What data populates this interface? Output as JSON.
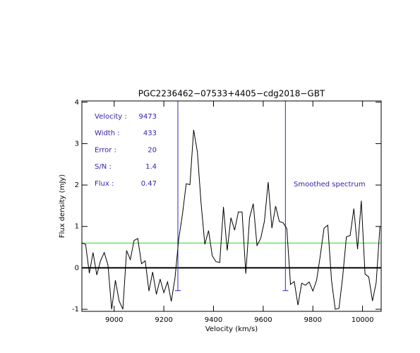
{
  "chart_data": {
    "type": "line",
    "title": "PGC2236462−07533+4405−cdg2018−GBT",
    "x_label": "Velocity (km/s)",
    "y_label": "Flux density (mJy)",
    "xlim": [
      8870,
      10075
    ],
    "ylim": [
      -1.05,
      4.03
    ],
    "xticks": [
      9000,
      9200,
      9400,
      9600,
      9800,
      10000
    ],
    "yticks": [
      -1,
      0,
      1,
      2,
      3,
      4
    ],
    "x": [
      8870,
      8885,
      8900,
      8915,
      8930,
      8945,
      8960,
      8975,
      8990,
      9005,
      9020,
      9035,
      9050,
      9065,
      9080,
      9095,
      9110,
      9125,
      9140,
      9155,
      9170,
      9185,
      9200,
      9215,
      9230,
      9245,
      9260,
      9275,
      9290,
      9305,
      9320,
      9335,
      9350,
      9365,
      9380,
      9395,
      9410,
      9425,
      9440,
      9455,
      9470,
      9485,
      9500,
      9515,
      9530,
      9545,
      9560,
      9575,
      9590,
      9605,
      9620,
      9635,
      9650,
      9665,
      9680,
      9695,
      9710,
      9725,
      9740,
      9755,
      9770,
      9785,
      9800,
      9815,
      9830,
      9845,
      9860,
      9875,
      9890,
      9905,
      9920,
      9935,
      9950,
      9965,
      9980,
      9995,
      10010,
      10025,
      10040,
      10055,
      10070
    ],
    "series": [
      {
        "name": "Smoothed spectrum",
        "color": "#000000",
        "values": [
          0.6,
          0.57,
          -0.13,
          0.37,
          -0.17,
          0.17,
          0.37,
          0.07,
          -1.0,
          -0.3,
          -0.8,
          -1.0,
          0.42,
          0.2,
          0.66,
          0.71,
          0.1,
          0.17,
          -0.56,
          -0.1,
          -0.64,
          -0.27,
          -0.6,
          -0.34,
          -0.81,
          -0.24,
          0.7,
          1.3,
          2.03,
          2.01,
          3.33,
          2.8,
          1.55,
          0.57,
          0.9,
          0.29,
          0.15,
          0.13,
          1.47,
          0.42,
          1.21,
          0.91,
          1.35,
          1.35,
          -0.14,
          1.2,
          1.55,
          0.54,
          0.71,
          1.13,
          2.07,
          0.96,
          1.49,
          1.12,
          1.09,
          0.95,
          -0.4,
          -0.33,
          -0.9,
          -0.37,
          -0.42,
          -0.34,
          -0.56,
          -0.3,
          0.3,
          0.96,
          1.03,
          -0.3,
          -1.0,
          -0.98,
          -0.22,
          0.75,
          0.78,
          1.43,
          0.45,
          1.62,
          -0.15,
          -0.22,
          -0.8,
          -0.35,
          1.0
        ]
      }
    ],
    "hline": {
      "value": 0.6,
      "color": "#22dd22"
    },
    "zero_line": {
      "value": 0,
      "color": "#000000"
    },
    "window_color": "#2a2ab8",
    "window_bottom": -0.55,
    "text_color": "#3a20a8",
    "stats": [
      {
        "label": "Velocity :",
        "value": 9473
      },
      {
        "label": "Width :",
        "value": 433
      },
      {
        "label": "Error :",
        "value": 20
      },
      {
        "label": "S/N :",
        "value": 1.4
      },
      {
        "label": "Flux :",
        "value": 0.47
      }
    ]
  }
}
